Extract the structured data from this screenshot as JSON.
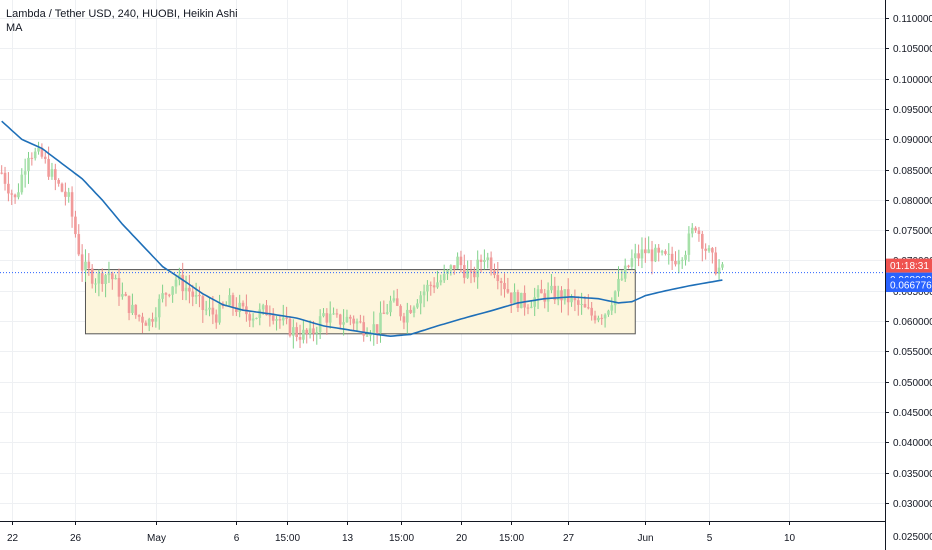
{
  "header": {
    "symbol_line": "Lambda / Tether USD, 240, HUOBI, Heikin Ashi",
    "indicator_label": "MA"
  },
  "colors": {
    "up": "#26a69a",
    "down": "#ef5350",
    "up_light": "#a6e0a8",
    "down_light": "#f19a9a",
    "ma_line": "#2962ff",
    "ma_line_alt": "#1e6fb8",
    "price_line": "#2962ff",
    "grid": "#eef0f3",
    "box_fill": "#fdf5dc",
    "box_border": "#555555",
    "badge_red": "#ef5350",
    "badge_blue": "#2962ff"
  },
  "chart_data": {
    "type": "candlestick",
    "style": "Heikin Ashi",
    "grid": true,
    "y_axis": {
      "min": 0.027,
      "max": 0.113,
      "ticks": [
        "0.110000",
        "0.105000",
        "0.100000",
        "0.095000",
        "0.090000",
        "0.085000",
        "0.080000",
        "0.075000",
        "0.070000",
        "0.065000",
        "0.060000",
        "0.055000",
        "0.050000",
        "0.045000",
        "0.040000",
        "0.035000",
        "0.030000"
      ],
      "tick_values": [
        0.11,
        0.105,
        0.1,
        0.095,
        0.09,
        0.085,
        0.08,
        0.075,
        0.07,
        0.065,
        0.06,
        0.055,
        0.05,
        0.045,
        0.04,
        0.035,
        0.03
      ]
    },
    "x_axis": {
      "ticks": [
        "22",
        "26",
        "May",
        "6",
        "15:00",
        "13",
        "15:00",
        "20",
        "15:00",
        "27",
        "Jun",
        "5",
        "10"
      ],
      "tick_index": [
        3,
        22,
        46,
        70,
        85,
        103,
        119,
        137,
        152,
        169,
        192,
        211,
        235
      ],
      "total_slots": 264
    },
    "candle_anchors": [
      [
        0,
        0.0845
      ],
      [
        4,
        0.08
      ],
      [
        8,
        0.088
      ],
      [
        12,
        0.087
      ],
      [
        16,
        0.083
      ],
      [
        20,
        0.08
      ],
      [
        24,
        0.069
      ],
      [
        28,
        0.067
      ],
      [
        32,
        0.068
      ],
      [
        36,
        0.064
      ],
      [
        40,
        0.061
      ],
      [
        44,
        0.06
      ],
      [
        48,
        0.064
      ],
      [
        52,
        0.067
      ],
      [
        56,
        0.065
      ],
      [
        60,
        0.062
      ],
      [
        64,
        0.061
      ],
      [
        68,
        0.063
      ],
      [
        72,
        0.0615
      ],
      [
        76,
        0.061
      ],
      [
        80,
        0.062
      ],
      [
        84,
        0.0595
      ],
      [
        88,
        0.058
      ],
      [
        92,
        0.0575
      ],
      [
        96,
        0.061
      ],
      [
        100,
        0.06
      ],
      [
        104,
        0.0605
      ],
      [
        108,
        0.059
      ],
      [
        112,
        0.059
      ],
      [
        116,
        0.063
      ],
      [
        120,
        0.061
      ],
      [
        124,
        0.064
      ],
      [
        128,
        0.066
      ],
      [
        132,
        0.067
      ],
      [
        136,
        0.07
      ],
      [
        140,
        0.067
      ],
      [
        144,
        0.071
      ],
      [
        148,
        0.068
      ],
      [
        152,
        0.064
      ],
      [
        156,
        0.063
      ],
      [
        160,
        0.064
      ],
      [
        164,
        0.0645
      ],
      [
        168,
        0.064
      ],
      [
        172,
        0.0625
      ],
      [
        176,
        0.061
      ],
      [
        180,
        0.0615
      ],
      [
        184,
        0.066
      ],
      [
        188,
        0.07
      ],
      [
        192,
        0.0715
      ],
      [
        196,
        0.0705
      ],
      [
        200,
        0.07
      ],
      [
        204,
        0.072
      ],
      [
        207,
        0.076
      ],
      [
        210,
        0.072
      ],
      [
        213,
        0.069
      ],
      [
        215,
        0.0682
      ]
    ],
    "ma_series": [
      [
        0,
        0.093
      ],
      [
        6,
        0.09
      ],
      [
        12,
        0.0885
      ],
      [
        18,
        0.086
      ],
      [
        24,
        0.0835
      ],
      [
        30,
        0.08
      ],
      [
        36,
        0.076
      ],
      [
        42,
        0.0725
      ],
      [
        48,
        0.069
      ],
      [
        54,
        0.0668
      ],
      [
        60,
        0.0645
      ],
      [
        66,
        0.0627
      ],
      [
        72,
        0.0618
      ],
      [
        80,
        0.0612
      ],
      [
        88,
        0.0605
      ],
      [
        96,
        0.0592
      ],
      [
        104,
        0.0585
      ],
      [
        112,
        0.0578
      ],
      [
        116,
        0.0575
      ],
      [
        122,
        0.0578
      ],
      [
        130,
        0.0592
      ],
      [
        138,
        0.0605
      ],
      [
        146,
        0.0617
      ],
      [
        154,
        0.063
      ],
      [
        162,
        0.0637
      ],
      [
        170,
        0.064
      ],
      [
        178,
        0.0637
      ],
      [
        184,
        0.063
      ],
      [
        188,
        0.0632
      ],
      [
        192,
        0.0642
      ],
      [
        198,
        0.065
      ],
      [
        204,
        0.0657
      ],
      [
        210,
        0.0663
      ],
      [
        215,
        0.06677
      ]
    ],
    "range_box": {
      "x_start": 25,
      "x_end": 189,
      "y_top": 0.0685,
      "y_bottom": 0.0579
    },
    "current_price": 0.068,
    "current_price_label": "0.068000",
    "countdown_label": "01:18:31",
    "ma_value": 0.066776,
    "ma_value_label": "0.066776",
    "bottom_label": "0.025000"
  }
}
